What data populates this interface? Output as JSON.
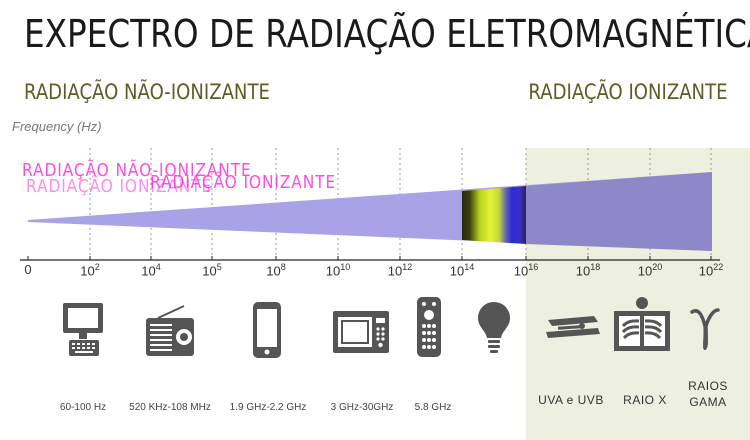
{
  "title": "EXPECTRO DE RADIAÇÃO ELETROMAGNÉTICA",
  "sections": {
    "non_ionizing": "RADIAÇÃO NÃO-IONIZANTE",
    "ionizing": "RADIAÇÃO IONIZANTE"
  },
  "axis_label": "Frequency (Hz)",
  "ticks": [
    {
      "base": "0",
      "exp": ""
    },
    {
      "base": "10",
      "exp": "2"
    },
    {
      "base": "10",
      "exp": "4"
    },
    {
      "base": "10",
      "exp": "5"
    },
    {
      "base": "10",
      "exp": "8"
    },
    {
      "base": "10",
      "exp": "10"
    },
    {
      "base": "10",
      "exp": "12"
    },
    {
      "base": "10",
      "exp": "14"
    },
    {
      "base": "10",
      "exp": "16"
    },
    {
      "base": "10",
      "exp": "18"
    },
    {
      "base": "10",
      "exp": "20"
    },
    {
      "base": "10",
      "exp": "22"
    }
  ],
  "devices": [
    {
      "icon": "computer-icon",
      "caption": "60-100 Hz"
    },
    {
      "icon": "radio-icon",
      "caption": "520 KHz-108 MHz"
    },
    {
      "icon": "mobile-phone-icon",
      "caption": "1.9 GHz-2.2 GHz"
    },
    {
      "icon": "microwave-icon",
      "caption": "3 GHz-30GHz"
    },
    {
      "icon": "remote-control-icon",
      "caption": "5.8 GHz"
    },
    {
      "icon": "light-bulb-icon",
      "caption": ""
    },
    {
      "icon": "tanning-bed-icon",
      "caption": "UVA e UVB"
    },
    {
      "icon": "xray-icon",
      "caption": "RAIO X"
    },
    {
      "icon": "gamma-icon",
      "caption": "RAIOS GAMA"
    }
  ],
  "colors": {
    "wedge": "#a9a2e6",
    "ionizing_background": "#eef0df",
    "section_label": "#5d5c26",
    "icon": "#555555"
  }
}
